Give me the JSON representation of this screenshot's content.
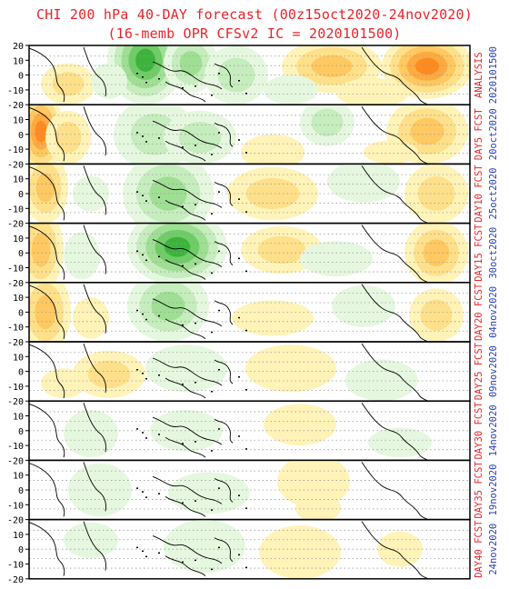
{
  "header": {
    "title_line1": "CHI 200 hPa 40-DAY forecast (00z15oct2020-24nov2020)",
    "title_line2": "(16-memb OPR CFSv2 IC = 2020101500)"
  },
  "colors": {
    "title": "#e8242a",
    "label_red": "#e8242a",
    "label_blue": "#2a3fb8",
    "positive_shades": [
      "#fff3b8",
      "#ffe08a",
      "#ffc860",
      "#ffaa40",
      "#ff8a20"
    ],
    "negative_shades": [
      "#e6f7e0",
      "#c6edbd",
      "#9fdf94",
      "#6fcc66",
      "#3cb43c"
    ]
  },
  "lat_ticks": [
    "20",
    "10",
    "0",
    "-10",
    "-20"
  ],
  "panels": [
    {
      "label_red": "ANALYSIS",
      "label_blue": "2020101500"
    },
    {
      "label_red": "DAY5 FCST",
      "label_blue": "20oct2020"
    },
    {
      "label_red": "DAY10 FCST",
      "label_blue": "25oct2020"
    },
    {
      "label_red": "DAY15 FCST",
      "label_blue": "30oct2020"
    },
    {
      "label_red": "DAY20 FCST",
      "label_blue": "04nov2020"
    },
    {
      "label_red": "DAY25 FCST",
      "label_blue": "09nov2020"
    },
    {
      "label_red": "DAY30 FCST",
      "label_blue": "14nov2020"
    },
    {
      "label_red": "DAY35 FCST",
      "label_blue": "19nov2020"
    },
    {
      "label_red": "DAY40 FCST",
      "label_blue": "24nov2020"
    }
  ]
}
